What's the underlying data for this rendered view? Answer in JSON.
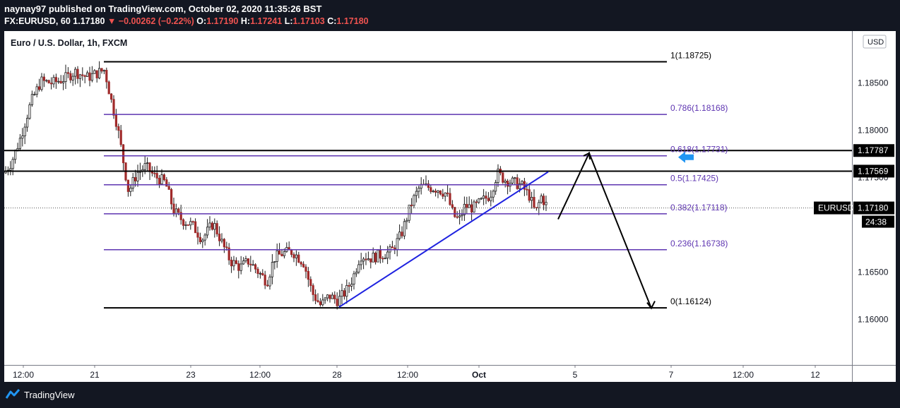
{
  "header": {
    "publish_line": "naynay97 published on TradingView.com, October 02, 2020 11:35:26 BST",
    "symbol": "FX:EURUSD, 60",
    "last_price": "1.17180",
    "change": "▼ −0.00262 (−0.22%)",
    "open_label": "O:",
    "open": "1.17190",
    "high_label": "H:",
    "high": "1.17241",
    "low_label": "L:",
    "low": "1.17103",
    "close_label": "C:",
    "close": "1.17180"
  },
  "chart_data": {
    "type": "candlestick",
    "title": "Euro / U.S. Dollar, 1h, FXCM",
    "currency_button": "USD",
    "ylim": [
      1.1552,
      1.1905
    ],
    "y_ticks": [
      "1.18500",
      "1.18000",
      "1.17500",
      "1.16500",
      "1.16000"
    ],
    "x_ticks": [
      "12:00",
      "21",
      "23",
      "12:00",
      "28",
      "12:00",
      "Oct",
      "5",
      "7",
      "12:00",
      "12"
    ],
    "fib_levels": [
      {
        "label": "1(1.18725)",
        "value": 1.18725,
        "color": "#000000"
      },
      {
        "label": "0.786(1.18168)",
        "value": 1.18168,
        "color": "#5e35b1"
      },
      {
        "label": "0.618(1.17731)",
        "value": 1.17731,
        "color": "#5e35b1"
      },
      {
        "label": "0.5(1.17425)",
        "value": 1.17425,
        "color": "#5e35b1"
      },
      {
        "label": "0.382(1.17118)",
        "value": 1.17118,
        "color": "#5e35b1"
      },
      {
        "label": "0.236(1.16738)",
        "value": 1.16738,
        "color": "#5e35b1"
      },
      {
        "label": "0(1.16124)",
        "value": 1.16124,
        "color": "#000000"
      }
    ],
    "horizontal_lines": [
      {
        "label": "1.17787",
        "value": 1.17787
      },
      {
        "label": "1.17569",
        "value": 1.17569
      }
    ],
    "price_tag": {
      "symbol": "EURUSD",
      "value": "1.17180",
      "countdown": "24:38"
    },
    "trendline": {
      "from": 1.16124,
      "to": 1.17569,
      "color": "#1e22e0"
    },
    "projection": [
      1.1718,
      1.1776,
      1.1612
    ],
    "colors": {
      "up": "#26a69a",
      "down": "#a02a2a",
      "fib": "#5e35b1",
      "trendline": "#1e22e0",
      "arrow_marker": "#2196f3"
    }
  },
  "footer": {
    "brand": "TradingView"
  }
}
